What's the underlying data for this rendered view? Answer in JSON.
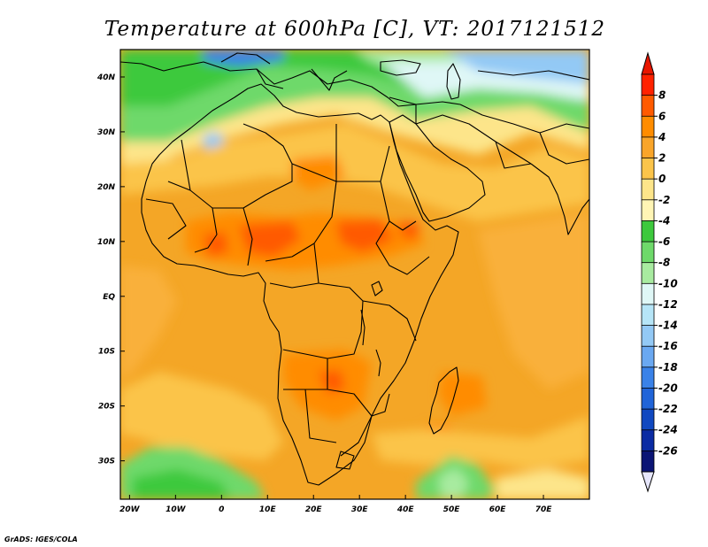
{
  "title": "Temperature at 600hPa [C], VT: 2017121512",
  "credit": "GrADS: IGES/COLA",
  "map": {
    "region": "Africa",
    "projection": "lat-lon",
    "lon_range": [
      -22,
      80
    ],
    "lat_range": [
      -37,
      45
    ],
    "x_ticks": [
      {
        "lon": -20,
        "label": "20W"
      },
      {
        "lon": -10,
        "label": "10W"
      },
      {
        "lon": 0,
        "label": "0"
      },
      {
        "lon": 10,
        "label": "10E"
      },
      {
        "lon": 20,
        "label": "20E"
      },
      {
        "lon": 30,
        "label": "30E"
      },
      {
        "lon": 40,
        "label": "40E"
      },
      {
        "lon": 50,
        "label": "50E"
      },
      {
        "lon": 60,
        "label": "60E"
      },
      {
        "lon": 70,
        "label": "70E"
      }
    ],
    "y_ticks": [
      {
        "lat": 40,
        "label": "40N"
      },
      {
        "lat": 30,
        "label": "30N"
      },
      {
        "lat": 20,
        "label": "20N"
      },
      {
        "lat": 10,
        "label": "10N"
      },
      {
        "lat": 0,
        "label": "EQ"
      },
      {
        "lat": -10,
        "label": "10S"
      },
      {
        "lat": -20,
        "label": "20S"
      },
      {
        "lat": -30,
        "label": "30S"
      }
    ]
  },
  "colorbar": {
    "labels": [
      "8",
      "6",
      "4",
      "2",
      "0",
      "-2",
      "-4",
      "-6",
      "-8",
      "-10",
      "-12",
      "-14",
      "-16",
      "-18",
      "-20",
      "-22",
      "-24",
      "-26"
    ],
    "colors": [
      "#ff2200",
      "#ff5a00",
      "#ff8c00",
      "#f9a52a",
      "#fbc44a",
      "#fde58a",
      "#fff5b5",
      "#3dc93d",
      "#6ed96a",
      "#a8eba0",
      "#dff7f6",
      "#b6e5f7",
      "#93c9f5",
      "#6aa8f1",
      "#3a82e8",
      "#2064d8",
      "#1048c0",
      "#0a2ba3",
      "#0b1575"
    ],
    "top_arrow_color": "#e81600",
    "bottom_arrow_color": "#e6e6fb"
  }
}
